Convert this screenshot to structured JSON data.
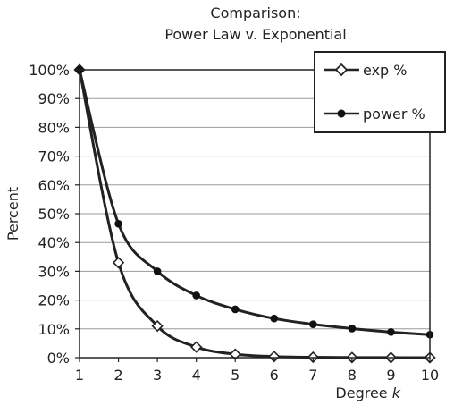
{
  "chart_data": {
    "type": "line",
    "title_lines": [
      "Comparison:",
      "Power Law v. Exponential"
    ],
    "xlabel": "Degree",
    "xlabel_var": "k",
    "ylabel": "Percent",
    "x": [
      1,
      2,
      3,
      4,
      5,
      6,
      7,
      8,
      9,
      10
    ],
    "xlim": [
      1,
      10
    ],
    "ylim": [
      0,
      100
    ],
    "y_ticks": [
      "0%",
      "10%",
      "20%",
      "30%",
      "40%",
      "50%",
      "60%",
      "70%",
      "80%",
      "90%",
      "100%"
    ],
    "x_ticks": [
      "1",
      "2",
      "3",
      "4",
      "5",
      "6",
      "7",
      "8",
      "9",
      "10"
    ],
    "grid": "horizontal",
    "legend_position": "top-right",
    "series": [
      {
        "name": "exp %",
        "marker": "open-diamond",
        "values": [
          100,
          33,
          11,
          3.7,
          1.2,
          0.4,
          0.14,
          0.05,
          0.02,
          0.005
        ]
      },
      {
        "name": "power %",
        "marker": "filled-circle",
        "values": [
          100,
          46.5,
          30,
          21.6,
          16.8,
          13.6,
          11.6,
          10.1,
          8.9,
          8.0
        ]
      }
    ]
  }
}
